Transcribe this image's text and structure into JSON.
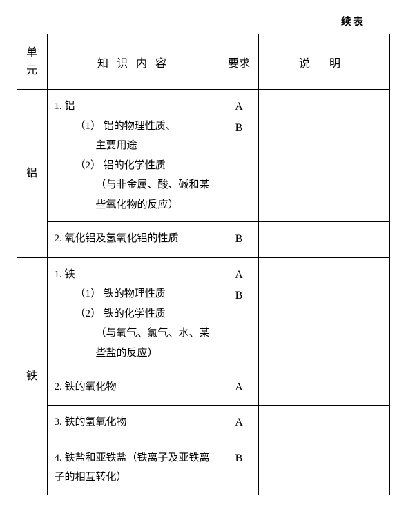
{
  "caption": "续表",
  "headers": {
    "unit": "单元",
    "content": "知 识 内 容",
    "req": "要求",
    "note": "说   明"
  },
  "sections": [
    {
      "unit": "铝",
      "rows": [
        {
          "content": {
            "num": "1. 铝",
            "subs": [
              {
                "head": "（1） 铝的物理性质、",
                "cont": "主要用途"
              },
              {
                "head": "（2） 铝的化学性质",
                "cont": "（与非金属、酸、碱和某些氧化物的反应）"
              }
            ]
          },
          "req": [
            "",
            "A",
            "",
            "B",
            "",
            "",
            ""
          ],
          "note": ""
        },
        {
          "content": {
            "num": "2. 氧化铝及氢氧化铝的性质"
          },
          "req": [
            "B"
          ],
          "note": ""
        }
      ]
    },
    {
      "unit": "铁",
      "rows": [
        {
          "content": {
            "num": "1. 铁",
            "subs": [
              {
                "head": "（1） 铁的物理性质"
              },
              {
                "head": "（2） 铁的化学性质",
                "cont": "（与氧气、氯气、水、某些盐的反应）"
              }
            ]
          },
          "req": [
            "",
            "A",
            "B",
            "",
            "",
            ""
          ],
          "note": ""
        },
        {
          "content": {
            "num": "2. 铁的氧化物"
          },
          "req": [
            "A"
          ],
          "note": ""
        },
        {
          "content": {
            "num": "3. 铁的氢氧化物"
          },
          "req": [
            "A"
          ],
          "note": ""
        },
        {
          "content": {
            "num": "4. 铁盐和亚铁盐（铁离子及亚铁离子的相互转化）"
          },
          "req": [
            "B"
          ],
          "note": ""
        }
      ]
    }
  ]
}
